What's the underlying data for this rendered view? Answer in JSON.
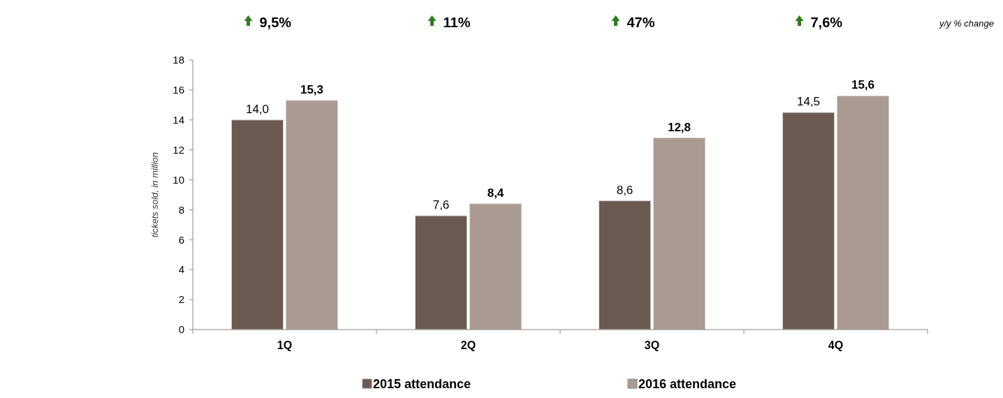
{
  "chart_data": {
    "type": "bar",
    "ylabel": "tickets sold, in million",
    "categories": [
      "1Q",
      "2Q",
      "3Q",
      "4Q"
    ],
    "series": [
      {
        "name": "2015 attendance",
        "color": "#6b5a52",
        "values": [
          14.0,
          7.6,
          8.6,
          14.5
        ],
        "value_labels": [
          "14,0",
          "7,6",
          "8,6",
          "14,5"
        ]
      },
      {
        "name": "2016 attendance",
        "color": "#aa9b92",
        "values": [
          15.3,
          8.4,
          12.8,
          15.6
        ],
        "value_labels": [
          "15,3",
          "8,4",
          "12,8",
          "15,6"
        ]
      }
    ],
    "ylim": [
      0,
      18
    ],
    "yticks": [
      0,
      2,
      4,
      6,
      8,
      10,
      12,
      14,
      16,
      18
    ],
    "grid": false,
    "legend": "bottom",
    "annotations": [
      "9,5%",
      "11%",
      "47%",
      "7,6%",
      "y/y % change"
    ]
  }
}
